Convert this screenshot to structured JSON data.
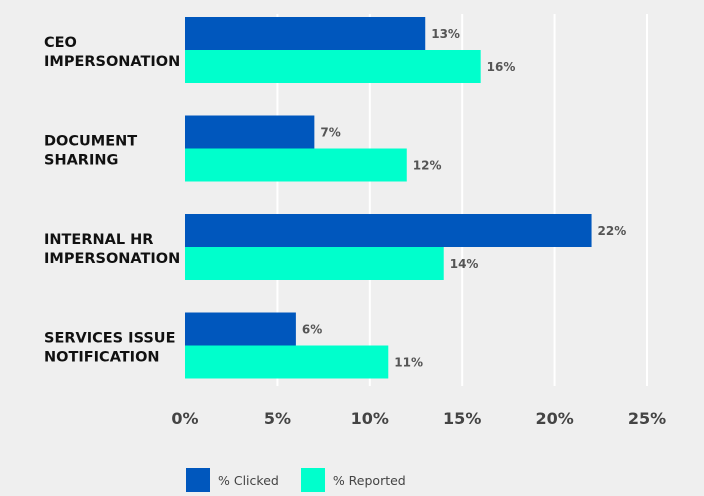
{
  "chart_data": {
    "type": "bar",
    "orientation": "horizontal",
    "categories": [
      [
        "CEO",
        "IMPERSONATION"
      ],
      [
        "DOCUMENT",
        "SHARING"
      ],
      [
        "INTERNAL HR",
        "IMPERSONATION"
      ],
      [
        "SERVICES ISSUE",
        "NOTIFICATION"
      ]
    ],
    "series": [
      {
        "name": "% Clicked",
        "color": "#0057bd",
        "values": [
          13,
          7,
          22,
          6
        ],
        "labels": [
          "13%",
          "7%",
          "22%",
          "6%"
        ]
      },
      {
        "name": "% Reported",
        "color": "#00ffcc",
        "values": [
          16,
          12,
          14,
          11
        ],
        "labels": [
          "16%",
          "12%",
          "14%",
          "11%"
        ]
      }
    ],
    "xlim": [
      0,
      25
    ],
    "xticks": [
      {
        "value": 0,
        "label": "0%"
      },
      {
        "value": 5,
        "label": "5%"
      },
      {
        "value": 10,
        "label": "10%"
      },
      {
        "value": 15,
        "label": "15%"
      },
      {
        "value": 20,
        "label": "20%"
      },
      {
        "value": 25,
        "label": "25%"
      }
    ],
    "grid": true,
    "gridline_color": "#ffffff",
    "legend_position": "bottom-left"
  }
}
